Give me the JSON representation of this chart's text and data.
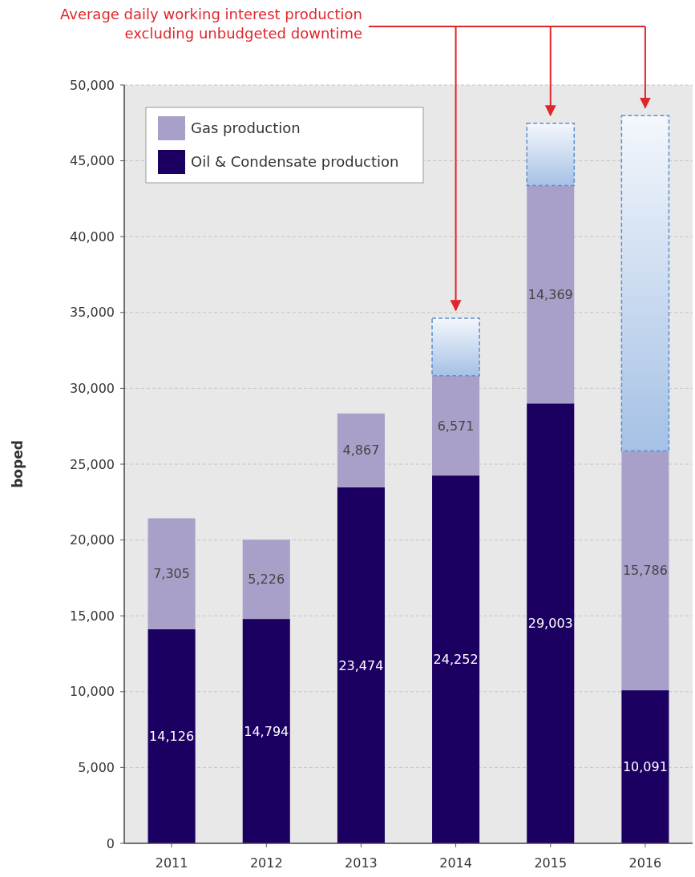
{
  "chart_data": {
    "type": "bar",
    "stacked": true,
    "ylabel": "boped",
    "annotations": [
      "Average daily working interest production\nexcluding unbudgeted downtime"
    ],
    "categories": [
      "2011",
      "2012",
      "2013",
      "2014",
      "2015",
      "2016"
    ],
    "series": [
      {
        "name": "Oil & Condensate production",
        "color": "#1b0062",
        "values": [
          14126,
          14794,
          23474,
          24252,
          29003,
          10091
        ],
        "value_labels": [
          "14,126",
          "14,794",
          "23,474",
          "24,252",
          "29,003",
          "10,091"
        ]
      },
      {
        "name": "Gas production",
        "color": "#a9a0c9",
        "values": [
          7305,
          5226,
          4867,
          6571,
          14369,
          15786
        ],
        "value_labels": [
          "7,305",
          "5,226",
          "4,867",
          "6,571",
          "14,369",
          "15,786"
        ]
      },
      {
        "color": "#5b8fd0",
        "line_style": "dashed",
        "values": [
          null,
          null,
          null,
          3800,
          4100,
          22100
        ]
      }
    ],
    "ylim": [
      0,
      50000
    ],
    "yticks": [
      0,
      {
        "value": 5000,
        "label": "5,000"
      },
      {
        "value": 10000,
        "label": "10,000"
      },
      {
        "value": 15000,
        "label": "15,000"
      },
      {
        "value": 20000,
        "label": "20,000"
      },
      {
        "value": 25000,
        "label": "25,000"
      },
      {
        "value": 30000,
        "label": "30,000"
      },
      {
        "value": 35000,
        "label": "35,000"
      },
      {
        "value": 40000,
        "label": "40,000"
      },
      {
        "value": 45000,
        "label": "45,000"
      },
      {
        "value": 50000,
        "label": "50,000"
      }
    ],
    "grid": "y",
    "legend": "top left"
  }
}
